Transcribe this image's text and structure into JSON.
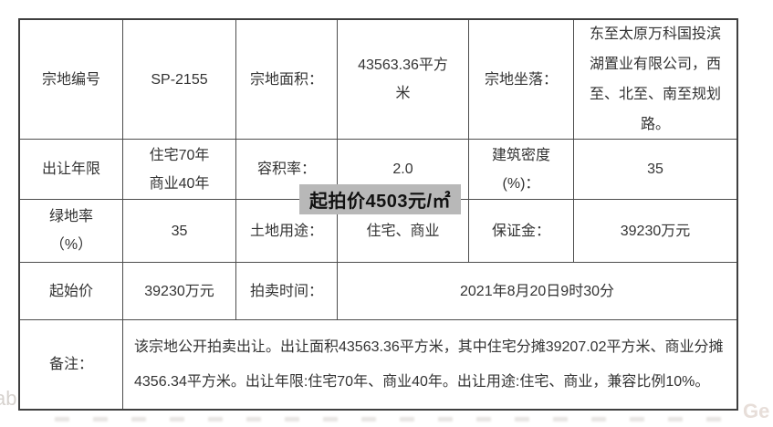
{
  "overlay": {
    "text": "起拍价4503元/㎡",
    "bg_color": "#b8b8b8",
    "text_color": "#111111"
  },
  "table": {
    "rows": {
      "r1": {
        "c1": "宗地编号",
        "c2": "SP-2155",
        "c3": "宗地面积：",
        "c4": "43563.36平方\n米",
        "c5": "宗地坐落：",
        "c6": "东至太原万科国投滨湖置业有限公司，西至、北至、南至规划路。"
      },
      "r2": {
        "c1": "出让年限",
        "c2": "住宅70年\n商业40年",
        "c3": "容积率：",
        "c4": "2.0",
        "c5": "建筑密度\n(%)：",
        "c6": "35"
      },
      "r3": {
        "c1": "绿地率\n（%）",
        "c2": "35",
        "c3": "土地用途：",
        "c4": "住宅、商业",
        "c5": "保证金：",
        "c6": "39230万元"
      },
      "r4": {
        "c1": "起始价",
        "c2": "39230万元",
        "c3": "拍卖时间：",
        "c4": "2021年8月20日9时30分"
      },
      "r5": {
        "c1": "备注：",
        "c2": "该宗地公开拍卖出让。出让面积43563.36平方米，其中住宅分摊39207.02平方米、商业分摊4356.34平方米。出让年限:住宅70年、商业40年。出让用途:住宅、商业，兼容比例10%。"
      }
    }
  },
  "watermarks": {
    "bottom_left": "ab",
    "bottom_right": "Ge"
  }
}
